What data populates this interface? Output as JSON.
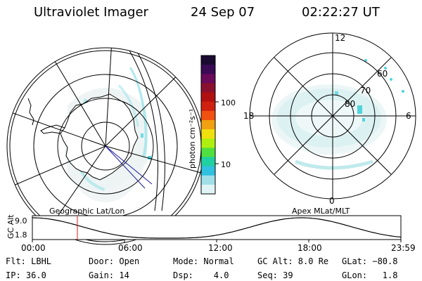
{
  "header": {
    "instrument": "Ultraviolet Imager",
    "date": "24 Sep 07",
    "time": "02:22:27 UT"
  },
  "colorbar": {
    "label": "photon cm⁻²s⁻¹",
    "tick_labels": [
      "100",
      "10"
    ],
    "colors": [
      "#1a0a30",
      "#3a0a55",
      "#6a0a5a",
      "#8a1030",
      "#b01010",
      "#d02010",
      "#f05010",
      "#f0a010",
      "#f0e010",
      "#b0f010",
      "#50e040",
      "#20d0a0",
      "#30c0e0",
      "#a0dfe8",
      "#e0f4f6"
    ]
  },
  "geo_map": {
    "caption": "Geographic Lat/Lon"
  },
  "polar_plot": {
    "caption": "Apex MLat/MLT",
    "mlt_labels": [
      "12",
      "18",
      "6",
      "0"
    ],
    "lat_labels": [
      "60",
      "70",
      "80"
    ]
  },
  "altitude_plot": {
    "ylabel": "GC Alt",
    "y_ticks": [
      "9.0",
      "1.8"
    ],
    "x_ticks": [
      "00:00",
      "06:00",
      "12:00",
      "18:00",
      "23:59"
    ],
    "current_time_marker": "02:22"
  },
  "status": {
    "row1": [
      "Flt: LBHL",
      "Door: Open",
      "Mode: Normal",
      "GC Alt: 8.0 Re",
      "GLat: −80.8"
    ],
    "row2": [
      "IP: 36.0",
      "Gain: 14",
      "Dsp:    4.0",
      "Seq: 39",
      "GLon:   1.8"
    ]
  },
  "accent_colors": {
    "aurora": "#9fe6ea",
    "marker": "#e0201a",
    "nav_line": "#1a1aa0"
  }
}
